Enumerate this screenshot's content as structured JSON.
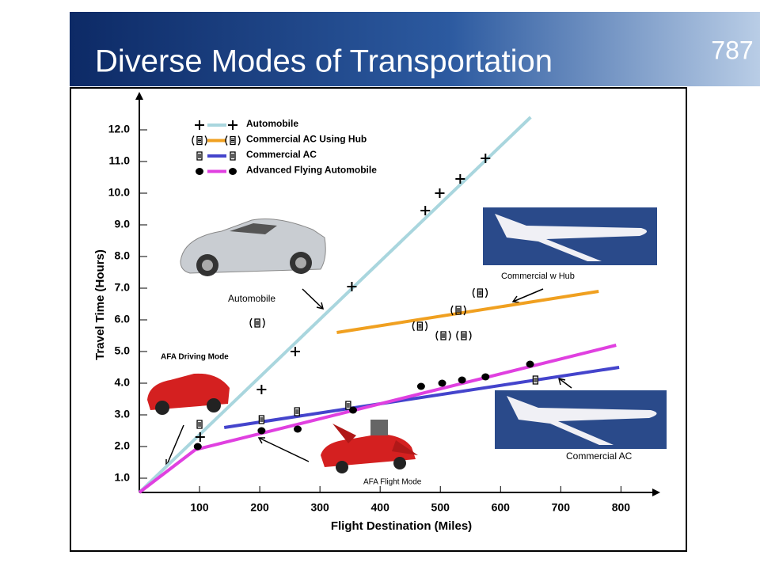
{
  "header": {
    "title": "Diverse Modes of Transportation",
    "badge": "787"
  },
  "chart_data": {
    "type": "line",
    "x_label": "Flight Destination (Miles)",
    "y_label": "Travel Time (Hours)",
    "xlim": [
      0,
      860
    ],
    "ylim": [
      0.55,
      13.15
    ],
    "xticks": [
      100,
      200,
      300,
      400,
      500,
      600,
      700,
      800
    ],
    "yticks": [
      {
        "value": 1,
        "label": "1.0"
      },
      {
        "value": 2,
        "label": "2.0"
      },
      {
        "value": 3,
        "label": "3.0"
      },
      {
        "value": 4,
        "label": "4.0"
      },
      {
        "value": 5,
        "label": "5.0"
      },
      {
        "value": 6,
        "label": "6.0"
      },
      {
        "value": 7,
        "label": "7.0"
      },
      {
        "value": 8,
        "label": "8.0"
      },
      {
        "value": 9,
        "label": "9.0"
      },
      {
        "value": 10,
        "label": "10.0"
      },
      {
        "value": 11,
        "label": "11.0"
      },
      {
        "value": 12,
        "label": "12.0"
      }
    ],
    "series": [
      {
        "name": "Automobile",
        "color": "#a9d6de",
        "marker": "plus",
        "line": {
          "x": [
            0,
            650
          ],
          "y": [
            0.55,
            12.4
          ]
        },
        "points": {
          "x": [
            101,
            203,
            259,
            353,
            475,
            499,
            533,
            575
          ],
          "y": [
            2.3,
            3.8,
            5.0,
            7.05,
            9.45,
            10.0,
            10.45,
            11.1
          ]
        }
      },
      {
        "name": "Commercial AC Using Hub",
        "color": "#f0a020",
        "marker": "hub",
        "line": {
          "x": [
            328,
            763
          ],
          "y": [
            5.6,
            6.9
          ]
        },
        "points": {
          "x": [
            196,
            466,
            505,
            530,
            539,
            566
          ],
          "y": [
            5.9,
            5.8,
            5.5,
            6.3,
            5.5,
            6.85
          ]
        }
      },
      {
        "name": "Commercial AC",
        "color": "#4444cc",
        "marker": "box",
        "line": {
          "x": [
            141,
            797
          ],
          "y": [
            2.6,
            4.5
          ]
        },
        "points": {
          "x": [
            100,
            203,
            262,
            347,
            658
          ],
          "y": [
            2.7,
            2.85,
            3.1,
            3.3,
            4.1
          ]
        }
      },
      {
        "name": "Advanced Flying Automobile",
        "color": "#e040e0",
        "marker": "dot",
        "line": {
          "x": [
            0,
            93,
            792
          ],
          "y": [
            0.55,
            1.9,
            5.2
          ]
        },
        "points": {
          "x": [
            97,
            203,
            263,
            355,
            468,
            503,
            536,
            575,
            649
          ],
          "y": [
            2.0,
            2.5,
            2.55,
            3.15,
            3.9,
            4.0,
            4.1,
            4.2,
            4.6
          ]
        }
      }
    ],
    "annotations": [
      "Automobile",
      "Commercial w Hub",
      "Commercial AC",
      "AFA Driving Mode",
      "AFA Flight Mode"
    ]
  }
}
